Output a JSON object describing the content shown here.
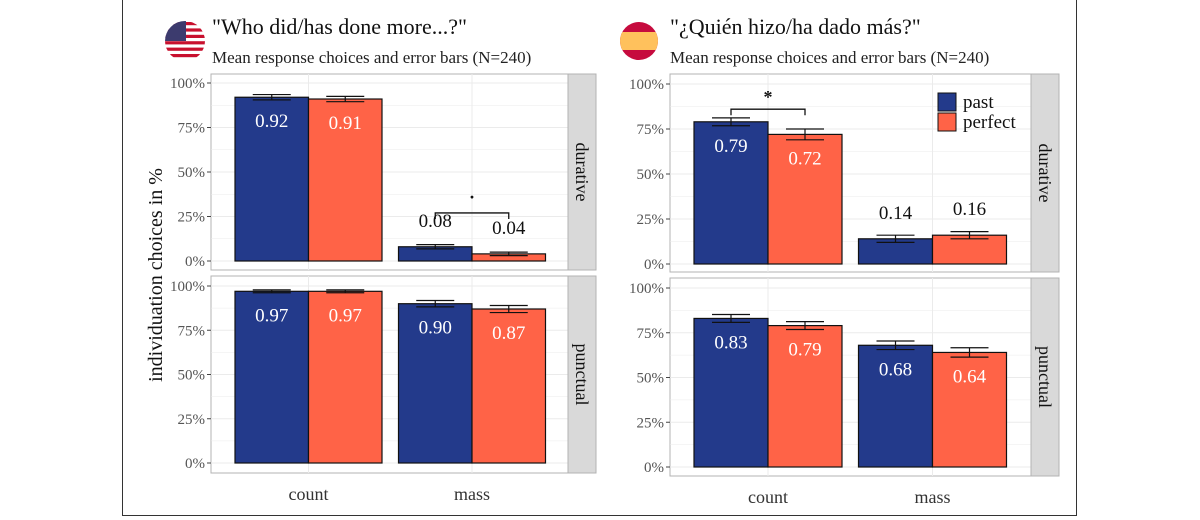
{
  "colors": {
    "past": "#233A8B",
    "perfect": "#FF6347",
    "strip_bg": "#D9D9D9",
    "grid": "#EBEBEB"
  },
  "y_axis_label": "individuation choices in %",
  "chart_data": [
    {
      "type": "bar",
      "id": "english",
      "flag": "us-flag",
      "title": "\"Who did/has done more...?\"",
      "subtitle": "Mean response choices and error bars (N=240)",
      "categories": [
        "count",
        "mass"
      ],
      "facets": [
        "durative",
        "punctual"
      ],
      "ylim": [
        0,
        1
      ],
      "yticks": [
        "0%",
        "25%",
        "50%",
        "75%",
        "100%"
      ],
      "ylabel": "individuation choices in %",
      "legend": null,
      "series": [
        {
          "name": "past",
          "facets": {
            "durative": [
              0.92,
              0.08
            ],
            "punctual": [
              0.97,
              0.9
            ]
          },
          "errors": {
            "durative": [
              0.015,
              0.012
            ],
            "punctual": [
              0.008,
              0.018
            ]
          }
        },
        {
          "name": "perfect",
          "facets": {
            "durative": [
              0.91,
              0.04
            ],
            "punctual": [
              0.97,
              0.87
            ]
          },
          "errors": {
            "durative": [
              0.015,
              0.01
            ],
            "punctual": [
              0.008,
              0.02
            ]
          }
        }
      ],
      "labels": {
        "durative": [
          [
            "0.92",
            "0.08"
          ],
          [
            "0.91",
            "0.04"
          ]
        ],
        "punctual": [
          [
            "0.97",
            "0.90"
          ],
          [
            "0.97",
            "0.87"
          ]
        ]
      },
      "significance": [
        {
          "facet": "durative",
          "category": "mass",
          "marker": "·"
        }
      ]
    },
    {
      "type": "bar",
      "id": "spanish",
      "flag": "spain-flag",
      "title": "\"¿Quién hizo/ha dado más?\"",
      "subtitle": "Mean response choices and error bars (N=240)",
      "categories": [
        "count",
        "mass"
      ],
      "facets": [
        "durative",
        "punctual"
      ],
      "ylim": [
        0,
        1
      ],
      "yticks": [
        "0%",
        "25%",
        "50%",
        "75%",
        "100%"
      ],
      "legend": {
        "position": "top-right",
        "entries": [
          "past",
          "perfect"
        ]
      },
      "series": [
        {
          "name": "past",
          "facets": {
            "durative": [
              0.79,
              0.14
            ],
            "punctual": [
              0.83,
              0.68
            ]
          },
          "errors": {
            "durative": [
              0.022,
              0.02
            ],
            "punctual": [
              0.022,
              0.024
            ]
          }
        },
        {
          "name": "perfect",
          "facets": {
            "durative": [
              0.72,
              0.16
            ],
            "punctual": [
              0.79,
              0.64
            ]
          },
          "errors": {
            "durative": [
              0.03,
              0.02
            ],
            "punctual": [
              0.022,
              0.026
            ]
          }
        }
      ],
      "labels": {
        "durative": [
          [
            "0.79",
            "0.14"
          ],
          [
            "0.72",
            "0.16"
          ]
        ],
        "punctual": [
          [
            "0.83",
            "0.68"
          ],
          [
            "0.79",
            "0.64"
          ]
        ]
      },
      "significance": [
        {
          "facet": "durative",
          "category": "count",
          "marker": "*"
        }
      ]
    }
  ]
}
